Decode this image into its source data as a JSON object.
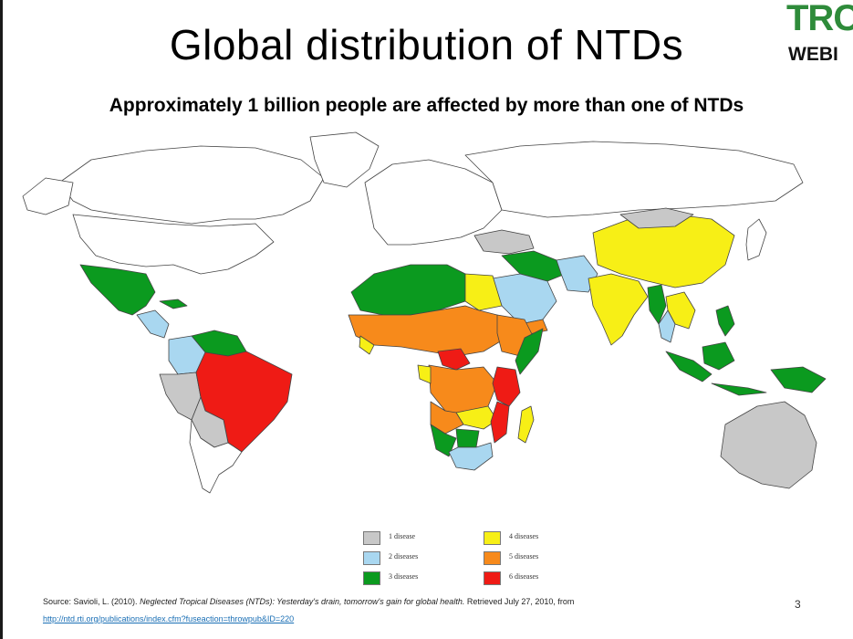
{
  "slide": {
    "title": "Global distribution of NTDs",
    "subtitle": "Approximately 1 billion people are affected by more than one of NTDs",
    "logo_top": "TRC",
    "logo_bottom": "WEBI",
    "slide_number": "3"
  },
  "colors": {
    "one_disease": "#c8c8c8",
    "two_diseases": "#a9d7f0",
    "three_diseases": "#0b9a1f",
    "four_diseases": "#f7ef16",
    "five_diseases": "#f78a1b",
    "six_diseases": "#ef1b15",
    "no_data": "#ffffff"
  },
  "legend": [
    {
      "label": "1 disease",
      "color": "#c8c8c8"
    },
    {
      "label": "2 diseases",
      "color": "#a9d7f0"
    },
    {
      "label": "3 diseases",
      "color": "#0b9a1f"
    },
    {
      "label": "4 diseases",
      "color": "#f7ef16"
    },
    {
      "label": "5 diseases",
      "color": "#f78a1b"
    },
    {
      "label": "6 diseases",
      "color": "#ef1b15"
    }
  ],
  "source": {
    "prefix": "Source: Savioli, L. (2010). ",
    "title": "Neglected Tropical Diseases (NTDs): Yesterday's drain, tomorrow's gain for global health.",
    "suffix": " Retrieved July 27, 2010, from",
    "link": "http://ntd.rti.org/publications/index.cfm?fuseaction=throwpub&ID=220"
  }
}
